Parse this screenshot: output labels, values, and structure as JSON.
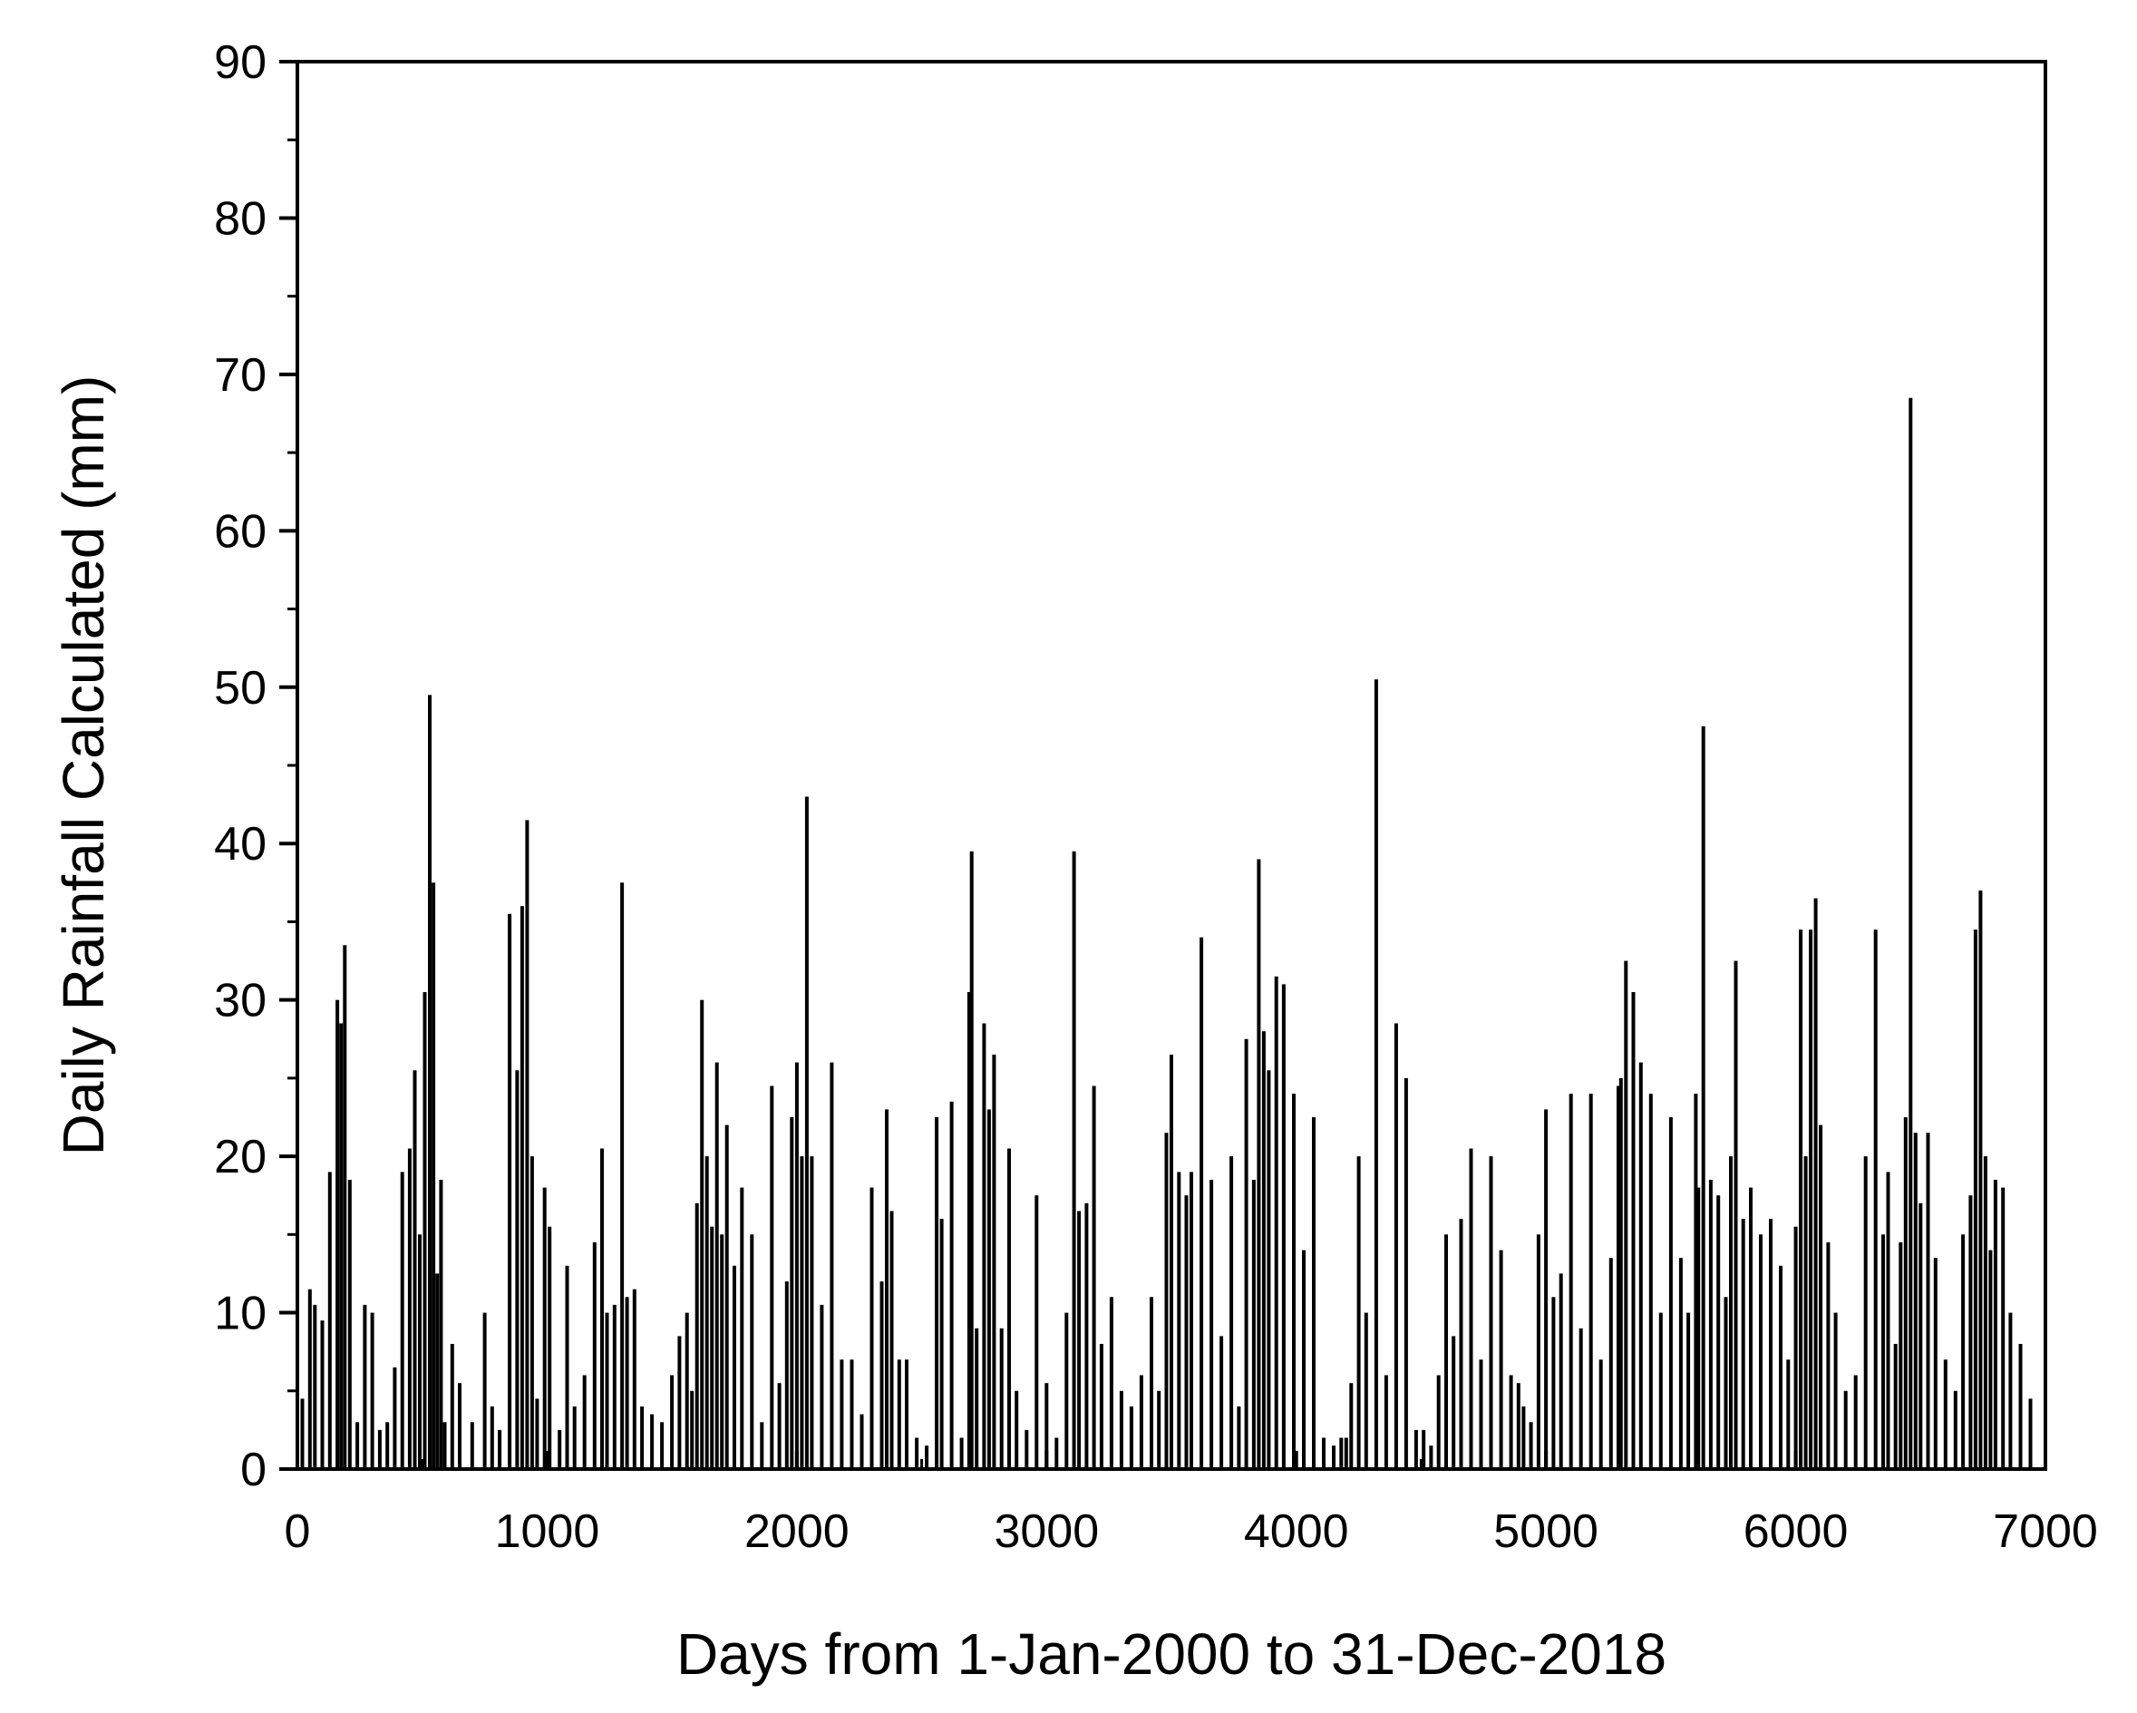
{
  "chart_data": {
    "type": "bar",
    "title": "",
    "xlabel": "Days from 1-Jan-2000 to 31-Dec-2018",
    "ylabel": "Daily Rainfall Calculated (mm)",
    "xlim": [
      0,
      7000
    ],
    "ylim": [
      0,
      90
    ],
    "xticks": [
      0,
      1000,
      2000,
      3000,
      4000,
      5000,
      6000,
      7000
    ],
    "yticks": [
      0,
      10,
      20,
      30,
      40,
      50,
      60,
      70,
      80,
      90
    ],
    "xtick_labels": [
      "0",
      "1000",
      "2000",
      "3000",
      "4000",
      "5000",
      "6000",
      "7000"
    ],
    "ytick_labels": [
      "0",
      "10",
      "20",
      "30",
      "40",
      "50",
      "60",
      "70",
      "80",
      "90"
    ],
    "grid": false,
    "bar_color": "#000000",
    "series": [
      {
        "x": [
          20,
          50,
          70,
          100,
          130,
          160,
          175,
          190,
          210,
          240,
          270,
          300,
          330,
          360,
          390,
          420,
          450,
          470,
          490,
          510,
          530,
          545,
          560,
          575,
          590,
          620,
          650,
          700,
          750,
          780,
          810,
          850,
          880,
          900,
          920,
          940,
          960,
          990,
          1010,
          1050,
          1080,
          1110,
          1150,
          1190,
          1220,
          1240,
          1270,
          1300,
          1320,
          1350,
          1380,
          1420,
          1460,
          1500,
          1530,
          1560,
          1580,
          1600,
          1620,
          1640,
          1660,
          1680,
          1700,
          1720,
          1750,
          1780,
          1820,
          1860,
          1900,
          1930,
          1960,
          1980,
          2000,
          2020,
          2040,
          2060,
          2100,
          2140,
          2180,
          2220,
          2260,
          2300,
          2340,
          2360,
          2380,
          2410,
          2440,
          2480,
          2520,
          2560,
          2580,
          2620,
          2660,
          2690,
          2700,
          2720,
          2750,
          2770,
          2790,
          2820,
          2850,
          2880,
          2920,
          2960,
          3000,
          3040,
          3080,
          3110,
          3130,
          3160,
          3190,
          3220,
          3260,
          3300,
          3340,
          3380,
          3420,
          3450,
          3480,
          3500,
          3530,
          3560,
          3580,
          3620,
          3660,
          3700,
          3740,
          3770,
          3800,
          3830,
          3850,
          3870,
          3890,
          3920,
          3950,
          3990,
          4030,
          4070,
          4110,
          4150,
          4180,
          4200,
          4220,
          4250,
          4280,
          4320,
          4360,
          4400,
          4440,
          4480,
          4510,
          4540,
          4570,
          4600,
          4630,
          4660,
          4700,
          4740,
          4780,
          4820,
          4860,
          4890,
          4910,
          4940,
          4970,
          5000,
          5030,
          5060,
          5100,
          5140,
          5180,
          5220,
          5260,
          5290,
          5300,
          5320,
          5350,
          5380,
          5420,
          5460,
          5500,
          5540,
          5570,
          5600,
          5610,
          5630,
          5660,
          5690,
          5720,
          5740,
          5760,
          5790,
          5820,
          5860,
          5900,
          5940,
          5970,
          6000,
          6020,
          6040,
          6060,
          6080,
          6100,
          6130,
          6160,
          6200,
          6240,
          6280,
          6320,
          6350,
          6370,
          6400,
          6420,
          6440,
          6460,
          6480,
          6500,
          6530,
          6560,
          6600,
          6640,
          6670,
          6700,
          6720,
          6740,
          6760,
          6780,
          6800,
          6830,
          6860,
          6900,
          6940
        ],
        "y": [
          4.5,
          11.5,
          10.5,
          9.5,
          19,
          30,
          28.5,
          33.5,
          18.5,
          3,
          10.5,
          10,
          2.5,
          3,
          6.5,
          19,
          20.5,
          25.5,
          15,
          30.5,
          49.5,
          37.5,
          12.5,
          18.5,
          3,
          8,
          5.5,
          3,
          10,
          4,
          2.5,
          35.5,
          25.5,
          36,
          41.5,
          20,
          4.5,
          18,
          15.5,
          2.5,
          13,
          4,
          6,
          14.5,
          20.5,
          10,
          10.5,
          37.5,
          11,
          11.5,
          4,
          3.5,
          3,
          6,
          8.5,
          10,
          5,
          17,
          30,
          20,
          15.5,
          26,
          15,
          22,
          13,
          18,
          15,
          3,
          24.5,
          5.5,
          12,
          22.5,
          26,
          20,
          43,
          20,
          10.5,
          26,
          7,
          7,
          3.5,
          18,
          12,
          23,
          16.5,
          7,
          7,
          2,
          1.5,
          22.5,
          16,
          23.5,
          2,
          30.5,
          39.5,
          9,
          28.5,
          23,
          26.5,
          9,
          20.5,
          5,
          2.5,
          17.5,
          5.5,
          2,
          10,
          39.5,
          16.5,
          17,
          24.5,
          8,
          11,
          5,
          4,
          6,
          11,
          5,
          21.5,
          26.5,
          19,
          17.5,
          19,
          34,
          18.5,
          8.5,
          20,
          4,
          27.5,
          18.5,
          39,
          28,
          25.5,
          31.5,
          31,
          24,
          14,
          22.5,
          2,
          1.5,
          2,
          2,
          5.5,
          20,
          10,
          50.5,
          6,
          28.5,
          25,
          2.5,
          2.5,
          1.5,
          6,
          15,
          8.5,
          16,
          20.5,
          7,
          20,
          14,
          6,
          5.5,
          4,
          3,
          15,
          23,
          11,
          12.5,
          24,
          9,
          24,
          7,
          13.5,
          24.5,
          25,
          32.5,
          30.5,
          26,
          24,
          10,
          22.5,
          13.5,
          10,
          24,
          18,
          47.5,
          18.5,
          17.5,
          11,
          20,
          32.5,
          16,
          18,
          15,
          16,
          13,
          7,
          15.5,
          34.5,
          20,
          34.5,
          36.5,
          22,
          14.5,
          10,
          5,
          6,
          20,
          34.5,
          15,
          19,
          8,
          14.5,
          22.5,
          68.5,
          21.5,
          17,
          21.5,
          13.5,
          7,
          5,
          15,
          17.5,
          34.5,
          37,
          20,
          14,
          18.5,
          18,
          10,
          8,
          4.5
        ]
      }
    ]
  }
}
